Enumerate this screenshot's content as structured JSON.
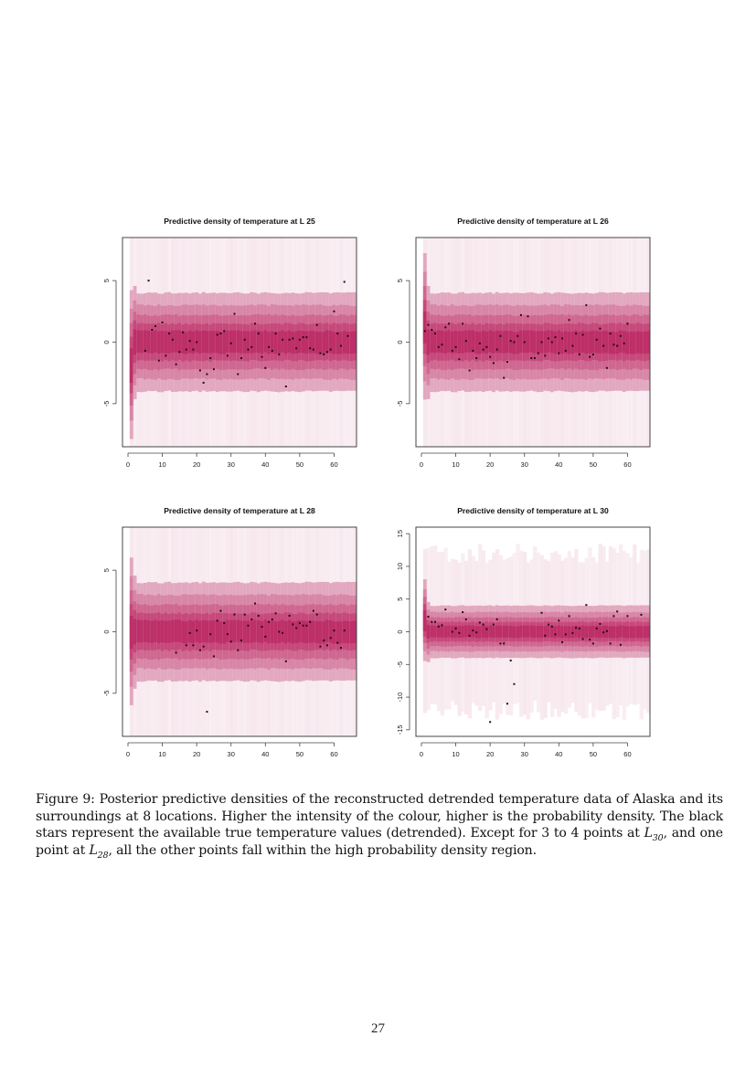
{
  "figure": {
    "number": "Figure 9:",
    "caption_parts": {
      "lead": "Posterior predictive densities of the reconstructed detrended temperature data of Alaska and its surroundings at 8 locations. Higher the intensity of the colour, higher is the probability density. The black stars represent the available true temperature values (detrended). Except for 3 to 4 points at ",
      "l30_base": "L",
      "l30_sub": "30",
      "mid": ", and one point at ",
      "l28_base": "L",
      "l28_sub": "28",
      "tail": ", all the other points fall within the high probability density region."
    }
  },
  "page_number": "27",
  "colors": {
    "band_outer": "#f7e8ee",
    "band_1": "#e2a8bf",
    "band_2": "#d886a6",
    "band_3": "#cf6790",
    "band_4": "#c6497b",
    "band_core": "#bd2f68",
    "point": "#2a0a14",
    "axis": "#444444"
  },
  "chart_data": [
    {
      "type": "heatmap",
      "title": "Predictive density of temperature at L 25",
      "xlabel": "",
      "ylabel": "",
      "xlim": [
        0,
        66
      ],
      "ylim": [
        -8.5,
        8.5
      ],
      "xticks": [
        "0",
        "10",
        "20",
        "30",
        "40",
        "50",
        "60"
      ],
      "yticks": [
        "-5",
        "0",
        "5"
      ],
      "grid": false,
      "bands_halfwidth": [
        4.0,
        3.0,
        2.2,
        1.5,
        0.9
      ],
      "outer_range": [
        -8.5,
        8.5
      ],
      "points": [
        [
          5,
          -0.7
        ],
        [
          6,
          5.0
        ],
        [
          7,
          1.0
        ],
        [
          8,
          1.3
        ],
        [
          9,
          -1.5
        ],
        [
          10,
          1.6
        ],
        [
          11,
          -1.1
        ],
        [
          12,
          0.7
        ],
        [
          13,
          0.2
        ],
        [
          14,
          -1.8
        ],
        [
          15,
          -0.8
        ],
        [
          16,
          0.8
        ],
        [
          17,
          -0.6
        ],
        [
          18,
          0.1
        ],
        [
          19,
          -0.6
        ],
        [
          20,
          0.0
        ],
        [
          21,
          -2.3
        ],
        [
          22,
          -3.3
        ],
        [
          23,
          -2.6
        ],
        [
          24,
          -1.3
        ],
        [
          25,
          -2.2
        ],
        [
          26,
          0.6
        ],
        [
          27,
          0.7
        ],
        [
          28,
          0.9
        ],
        [
          29,
          -1.1
        ],
        [
          30,
          -0.1
        ],
        [
          31,
          2.3
        ],
        [
          32,
          -2.6
        ],
        [
          33,
          -1.3
        ],
        [
          34,
          0.2
        ],
        [
          35,
          -0.6
        ],
        [
          36,
          -0.4
        ],
        [
          37,
          1.5
        ],
        [
          38,
          0.7
        ],
        [
          39,
          -1.2
        ],
        [
          40,
          -2.1
        ],
        [
          41,
          -0.4
        ],
        [
          42,
          -0.7
        ],
        [
          43,
          0.7
        ],
        [
          44,
          -1.0
        ],
        [
          45,
          0.2
        ],
        [
          46,
          -3.6
        ],
        [
          47,
          0.2
        ],
        [
          48,
          0.3
        ],
        [
          49,
          -0.5
        ],
        [
          50,
          0.2
        ],
        [
          51,
          0.4
        ],
        [
          52,
          0.4
        ],
        [
          53,
          -0.5
        ],
        [
          54,
          -0.6
        ],
        [
          55,
          1.4
        ],
        [
          56,
          -0.9
        ],
        [
          57,
          -1.0
        ],
        [
          58,
          -0.8
        ],
        [
          59,
          -0.6
        ],
        [
          60,
          2.5
        ],
        [
          61,
          0.7
        ],
        [
          62,
          -0.3
        ],
        [
          63,
          4.9
        ],
        [
          64,
          0.5
        ]
      ]
    },
    {
      "type": "heatmap",
      "title": "Predictive density of temperature at L 26",
      "xlabel": "",
      "ylabel": "",
      "xlim": [
        0,
        66
      ],
      "ylim": [
        -8.5,
        8.5
      ],
      "xticks": [
        "0",
        "10",
        "20",
        "30",
        "40",
        "50",
        "60"
      ],
      "yticks": [
        "-5",
        "0",
        "5"
      ],
      "grid": false,
      "bands_halfwidth": [
        4.0,
        3.0,
        2.2,
        1.5,
        0.9
      ],
      "outer_range": [
        -8.5,
        8.5
      ],
      "points": [
        [
          1,
          0.9
        ],
        [
          2,
          1.4
        ],
        [
          3,
          1.0
        ],
        [
          4,
          0.7
        ],
        [
          5,
          -0.4
        ],
        [
          6,
          -0.2
        ],
        [
          7,
          1.2
        ],
        [
          8,
          1.5
        ],
        [
          9,
          -0.7
        ],
        [
          10,
          -0.4
        ],
        [
          11,
          -1.4
        ],
        [
          12,
          1.5
        ],
        [
          13,
          0.1
        ],
        [
          14,
          -2.3
        ],
        [
          15,
          -0.7
        ],
        [
          16,
          -1.3
        ],
        [
          17,
          -0.1
        ],
        [
          18,
          -0.6
        ],
        [
          19,
          -0.4
        ],
        [
          20,
          -1.2
        ],
        [
          21,
          -1.7
        ],
        [
          22,
          -0.6
        ],
        [
          23,
          0.5
        ],
        [
          24,
          -2.9
        ],
        [
          25,
          -1.6
        ],
        [
          26,
          0.1
        ],
        [
          27,
          0.0
        ],
        [
          28,
          0.5
        ],
        [
          29,
          2.2
        ],
        [
          30,
          0.0
        ],
        [
          31,
          2.1
        ],
        [
          32,
          -1.3
        ],
        [
          33,
          -1.3
        ],
        [
          34,
          -0.9
        ],
        [
          35,
          0.0
        ],
        [
          36,
          -1.1
        ],
        [
          37,
          0.3
        ],
        [
          38,
          0.0
        ],
        [
          39,
          0.4
        ],
        [
          40,
          -0.9
        ],
        [
          41,
          0.3
        ],
        [
          42,
          -0.7
        ],
        [
          43,
          1.8
        ],
        [
          44,
          -0.3
        ],
        [
          45,
          0.7
        ],
        [
          46,
          -1.0
        ],
        [
          47,
          0.6
        ],
        [
          48,
          3.0
        ],
        [
          49,
          -1.2
        ],
        [
          50,
          -1.0
        ],
        [
          51,
          0.2
        ],
        [
          52,
          1.1
        ],
        [
          53,
          -0.3
        ],
        [
          54,
          -2.1
        ],
        [
          55,
          0.7
        ],
        [
          56,
          -0.2
        ],
        [
          57,
          -0.3
        ],
        [
          58,
          0.5
        ],
        [
          59,
          -0.1
        ],
        [
          60,
          1.5
        ]
      ]
    },
    {
      "type": "heatmap",
      "title": "Predictive density of temperature at L 28",
      "xlabel": "",
      "ylabel": "",
      "xlim": [
        0,
        66
      ],
      "ylim": [
        -8.5,
        8.5
      ],
      "xticks": [
        "0",
        "10",
        "20",
        "30",
        "40",
        "50",
        "60"
      ],
      "yticks": [
        "-5",
        "0",
        "5"
      ],
      "grid": false,
      "bands_halfwidth": [
        4.0,
        3.0,
        2.2,
        1.5,
        0.9
      ],
      "outer_range": [
        -8.5,
        8.5
      ],
      "points": [
        [
          14,
          -1.7
        ],
        [
          17,
          -1.1
        ],
        [
          18,
          -0.1
        ],
        [
          19,
          -1.1
        ],
        [
          20,
          0.1
        ],
        [
          21,
          -1.5
        ],
        [
          22,
          -1.2
        ],
        [
          23,
          -6.5
        ],
        [
          24,
          -0.2
        ],
        [
          25,
          -2.0
        ],
        [
          26,
          0.9
        ],
        [
          27,
          1.7
        ],
        [
          28,
          0.7
        ],
        [
          29,
          -0.2
        ],
        [
          30,
          -0.8
        ],
        [
          31,
          1.4
        ],
        [
          32,
          -1.5
        ],
        [
          33,
          -0.7
        ],
        [
          34,
          1.4
        ],
        [
          35,
          0.5
        ],
        [
          36,
          1.0
        ],
        [
          37,
          2.3
        ],
        [
          38,
          1.3
        ],
        [
          39,
          0.4
        ],
        [
          40,
          -0.4
        ],
        [
          41,
          0.8
        ],
        [
          42,
          1.0
        ],
        [
          43,
          1.5
        ],
        [
          44,
          0.0
        ],
        [
          45,
          -0.1
        ],
        [
          46,
          -2.4
        ],
        [
          47,
          1.3
        ],
        [
          48,
          0.6
        ],
        [
          49,
          0.3
        ],
        [
          50,
          0.7
        ],
        [
          51,
          0.5
        ],
        [
          52,
          0.5
        ],
        [
          53,
          0.8
        ],
        [
          54,
          1.7
        ],
        [
          55,
          1.4
        ],
        [
          56,
          -1.2
        ],
        [
          57,
          -0.7
        ],
        [
          58,
          -1.1
        ],
        [
          59,
          -0.5
        ],
        [
          60,
          0.1
        ],
        [
          61,
          -0.9
        ],
        [
          62,
          -1.3
        ],
        [
          63,
          0.1
        ]
      ]
    },
    {
      "type": "heatmap",
      "title": "Predictive density of temperature at L 30",
      "xlabel": "",
      "ylabel": "",
      "xlim": [
        0,
        66
      ],
      "ylim": [
        -16,
        16
      ],
      "xticks": [
        "0",
        "10",
        "20",
        "30",
        "40",
        "50",
        "60"
      ],
      "yticks": [
        "-15",
        "-10",
        "-5",
        "0",
        "5",
        "10",
        "15"
      ],
      "grid": false,
      "bands_halfwidth": [
        4.0,
        3.0,
        2.2,
        1.5,
        0.9
      ],
      "outer_range": [
        -12,
        12
      ],
      "points": [
        [
          2,
          2.3
        ],
        [
          3,
          1.5
        ],
        [
          4,
          1.5
        ],
        [
          5,
          0.8
        ],
        [
          6,
          1.0
        ],
        [
          7,
          3.4
        ],
        [
          9,
          0.0
        ],
        [
          10,
          0.5
        ],
        [
          11,
          -0.2
        ],
        [
          12,
          3.0
        ],
        [
          13,
          1.9
        ],
        [
          14,
          -0.6
        ],
        [
          15,
          0.2
        ],
        [
          16,
          -0.1
        ],
        [
          17,
          1.4
        ],
        [
          18,
          1.1
        ],
        [
          19,
          0.4
        ],
        [
          20,
          -13.8
        ],
        [
          21,
          1.1
        ],
        [
          22,
          1.9
        ],
        [
          23,
          -1.8
        ],
        [
          24,
          -1.8
        ],
        [
          25,
          -11.0
        ],
        [
          26,
          -4.4
        ],
        [
          27,
          -8.0
        ],
        [
          35,
          2.9
        ],
        [
          36,
          -0.6
        ],
        [
          37,
          1.1
        ],
        [
          38,
          0.8
        ],
        [
          39,
          -0.4
        ],
        [
          40,
          1.7
        ],
        [
          41,
          -1.6
        ],
        [
          42,
          -0.4
        ],
        [
          43,
          2.4
        ],
        [
          44,
          -0.2
        ],
        [
          45,
          0.6
        ],
        [
          46,
          0.5
        ],
        [
          47,
          -1.1
        ],
        [
          48,
          4.1
        ],
        [
          49,
          -1.2
        ],
        [
          50,
          -1.8
        ],
        [
          51,
          0.5
        ],
        [
          52,
          1.2
        ],
        [
          53,
          -0.1
        ],
        [
          54,
          0.1
        ],
        [
          55,
          -1.8
        ],
        [
          56,
          2.4
        ],
        [
          57,
          3.1
        ],
        [
          58,
          -2.0
        ],
        [
          60,
          2.4
        ],
        [
          64,
          2.6
        ]
      ]
    }
  ]
}
